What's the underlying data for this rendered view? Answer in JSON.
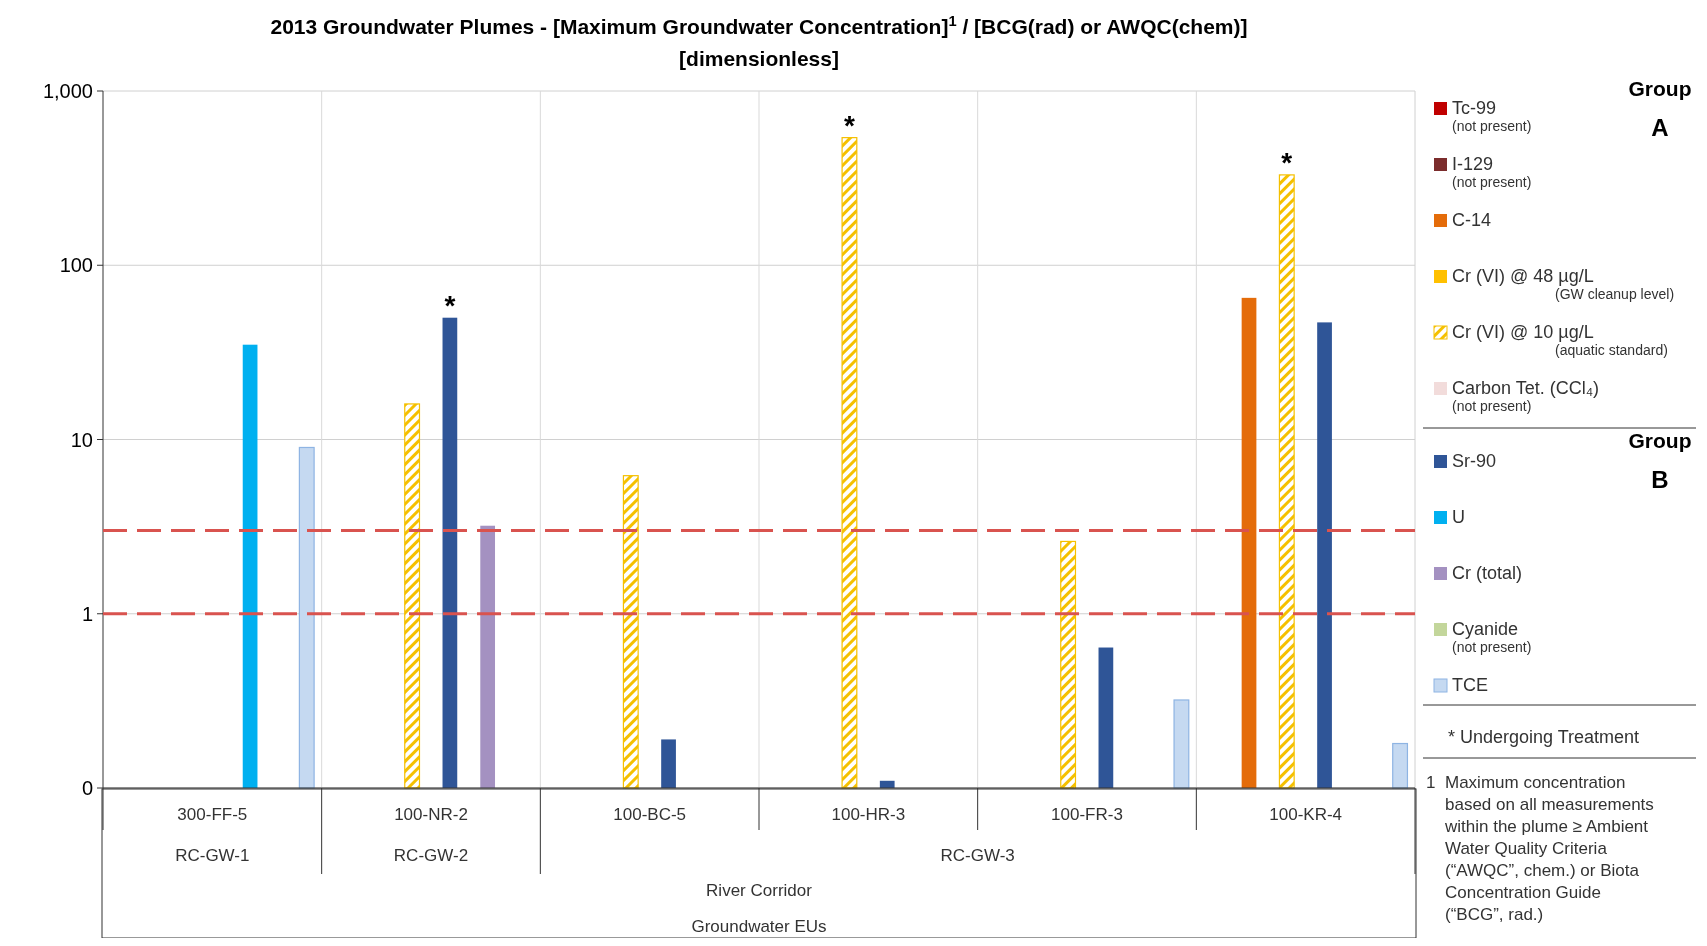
{
  "chart_data": {
    "type": "bar",
    "title": "2013 Groundwater Plumes - [Maximum Groundwater Concentration]$^{1}$ / [BCG(rad) or AWQC(chem)]",
    "subtitle": "[dimensionless]",
    "xlabel": "River Corridor Groundwater EUs",
    "categories": [
      "300-FF-5",
      "100-NR-2",
      "100-BC-5",
      "100-HR-3",
      "100-FR-3",
      "100-KR-4"
    ],
    "series": [
      {
        "name": "Tc-99\n(not present)",
        "color": "#c00000",
        "values": [
          null,
          null,
          null,
          null,
          null,
          null
        ]
      },
      {
        "name": "I-129\n(not present)",
        "color": "#7b2c2c",
        "values": [
          null,
          null,
          null,
          null,
          null,
          null
        ]
      },
      {
        "name": "C-14",
        "color": "#e46c0a",
        "values": [
          null,
          null,
          null,
          null,
          null,
          65
        ]
      },
      {
        "name": "Cr (VI)  @ 48 µg/L\n(GW cleanup level)",
        "color": "#ffc000",
        "values": [
          null,
          null,
          null,
          null,
          null,
          null
        ]
      },
      {
        "name": "Cr (VI) @ 10 µg/L\n(aquatic standard)",
        "color": "#f5c000",
        "values": [
          null,
          16,
          6.2,
          540,
          2.6,
          330
        ]
      },
      {
        "name": "Carbon Tet. (CCl₄)\n(not present)",
        "color": "#f2dcdb",
        "values": [
          null,
          null,
          null,
          null,
          null,
          null
        ]
      },
      {
        "name": "Sr-90",
        "color": "#2f5597",
        "values": [
          null,
          50,
          0.19,
          0.11,
          0.64,
          47
        ]
      },
      {
        "name": "U",
        "color": "#00b0f0",
        "values": [
          35,
          null,
          null,
          null,
          null,
          null
        ]
      },
      {
        "name": "Cr (total)",
        "color": "#a491c1",
        "values": [
          null,
          3.2,
          null,
          null,
          null,
          null
        ]
      },
      {
        "name": "Cyanide\n(not present)",
        "color": "#c3d69b",
        "values": [
          null,
          null,
          null,
          null,
          null,
          null
        ]
      },
      {
        "name": "TCE",
        "color": "#c5d9f1",
        "values": [
          9,
          null,
          null,
          null,
          0.32,
          0.18
        ]
      }
    ],
    "log": "y",
    "ylim": [
      0.1,
      1000
    ],
    "yticks": [
      {
        "value": 0.1,
        "label": "0"
      },
      1,
      10,
      100,
      {
        "value": 1000,
        "label": "1,000"
      }
    ],
    "grid": true,
    "legend": "right",
    "ref_lines": [
      {
        "axis": "y",
        "value": 3,
        "color": "#d9534f",
        "line_style": "dashed"
      },
      {
        "axis": "y",
        "value": 1,
        "color": "#d9534f",
        "line_style": "dashed"
      }
    ],
    "annotations": [
      "Group A",
      "Group B",
      "* Undergoing Treatment",
      "1 Maximum concentration based on all measurements within the plume ≥ Ambient Water Quality Criteria (“AWQC”, chem.) or Biota Concentration Guide (“BCG”, rad.)",
      "RC-GW-1",
      "RC-GW-2",
      "RC-GW-3",
      "*",
      "*",
      "*"
    ]
  }
}
